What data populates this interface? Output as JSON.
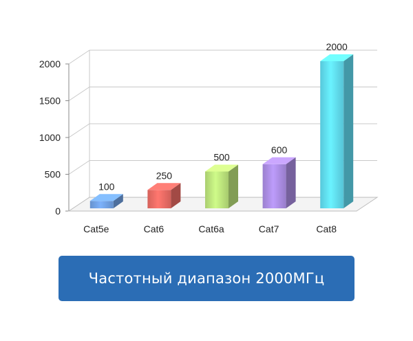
{
  "chart_data": {
    "type": "bar",
    "style": "3d",
    "categories": [
      "Cat5e",
      "Cat6",
      "Cat6a",
      "Cat7",
      "Cat8"
    ],
    "values": [
      100,
      250,
      500,
      600,
      2000
    ],
    "data_labels": [
      "100",
      "250",
      "500",
      "600",
      "2000"
    ],
    "yticks": [
      0,
      500,
      1000,
      1500,
      2000
    ],
    "ytick_labels": [
      "0",
      "500",
      "1000",
      "1500",
      "2000"
    ],
    "ylim": [
      0,
      2000
    ],
    "grid": true,
    "legend": "none",
    "colors": [
      "#6f9fe0",
      "#e86a63",
      "#b9e07a",
      "#a98be0",
      "#5fd9ee"
    ]
  },
  "banner": {
    "text": "Частотный диапазон 2000МГц",
    "color": "#2b6db5"
  }
}
